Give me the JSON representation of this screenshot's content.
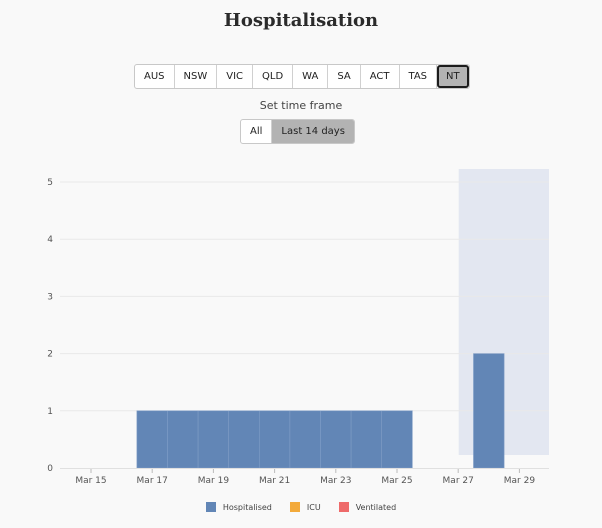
{
  "title": "Hospitalisation",
  "regions": [
    "AUS",
    "NSW",
    "VIC",
    "QLD",
    "WA",
    "SA",
    "ACT",
    "TAS",
    "NT"
  ],
  "active_region": "NT",
  "time_frame": {
    "label": "Set time frame",
    "options": [
      "All",
      "Last 14 days"
    ],
    "active": "Last 14 days"
  },
  "colors": {
    "hospitalised": "#6286b6",
    "icu": "#f3aa3b",
    "ventilated": "#ee6a6a",
    "highlight": "#e3e7f1",
    "grid": "#e9e9e9"
  },
  "chart_data": {
    "type": "bar",
    "x_start": "Mar 15",
    "x_ticks": [
      "Mar 15",
      "Mar 17",
      "Mar 19",
      "Mar 21",
      "Mar 23",
      "Mar 25",
      "Mar 27",
      "Mar 29"
    ],
    "ylim": [
      0,
      5
    ],
    "y_ticks": [
      0,
      1,
      2,
      3,
      4,
      5
    ],
    "grid": true,
    "legend_position": "bottom",
    "highlight_range": [
      "Mar 27",
      "Mar 29"
    ],
    "dates": [
      "Mar 15",
      "Mar 16",
      "Mar 17",
      "Mar 18",
      "Mar 19",
      "Mar 20",
      "Mar 21",
      "Mar 22",
      "Mar 23",
      "Mar 24",
      "Mar 25",
      "Mar 26",
      "Mar 27",
      "Mar 28",
      "Mar 29"
    ],
    "series": [
      {
        "name": "Hospitalised",
        "values": [
          0,
          0,
          1,
          1,
          1,
          1,
          1,
          1,
          1,
          1,
          1,
          0,
          0,
          2,
          0
        ]
      },
      {
        "name": "ICU",
        "values": [
          0,
          0,
          0,
          0,
          0,
          0,
          0,
          0,
          0,
          0,
          0,
          0,
          0,
          0,
          0
        ]
      },
      {
        "name": "Ventilated",
        "values": [
          0,
          0,
          0,
          0,
          0,
          0,
          0,
          0,
          0,
          0,
          0,
          0,
          0,
          0,
          0
        ]
      }
    ]
  }
}
